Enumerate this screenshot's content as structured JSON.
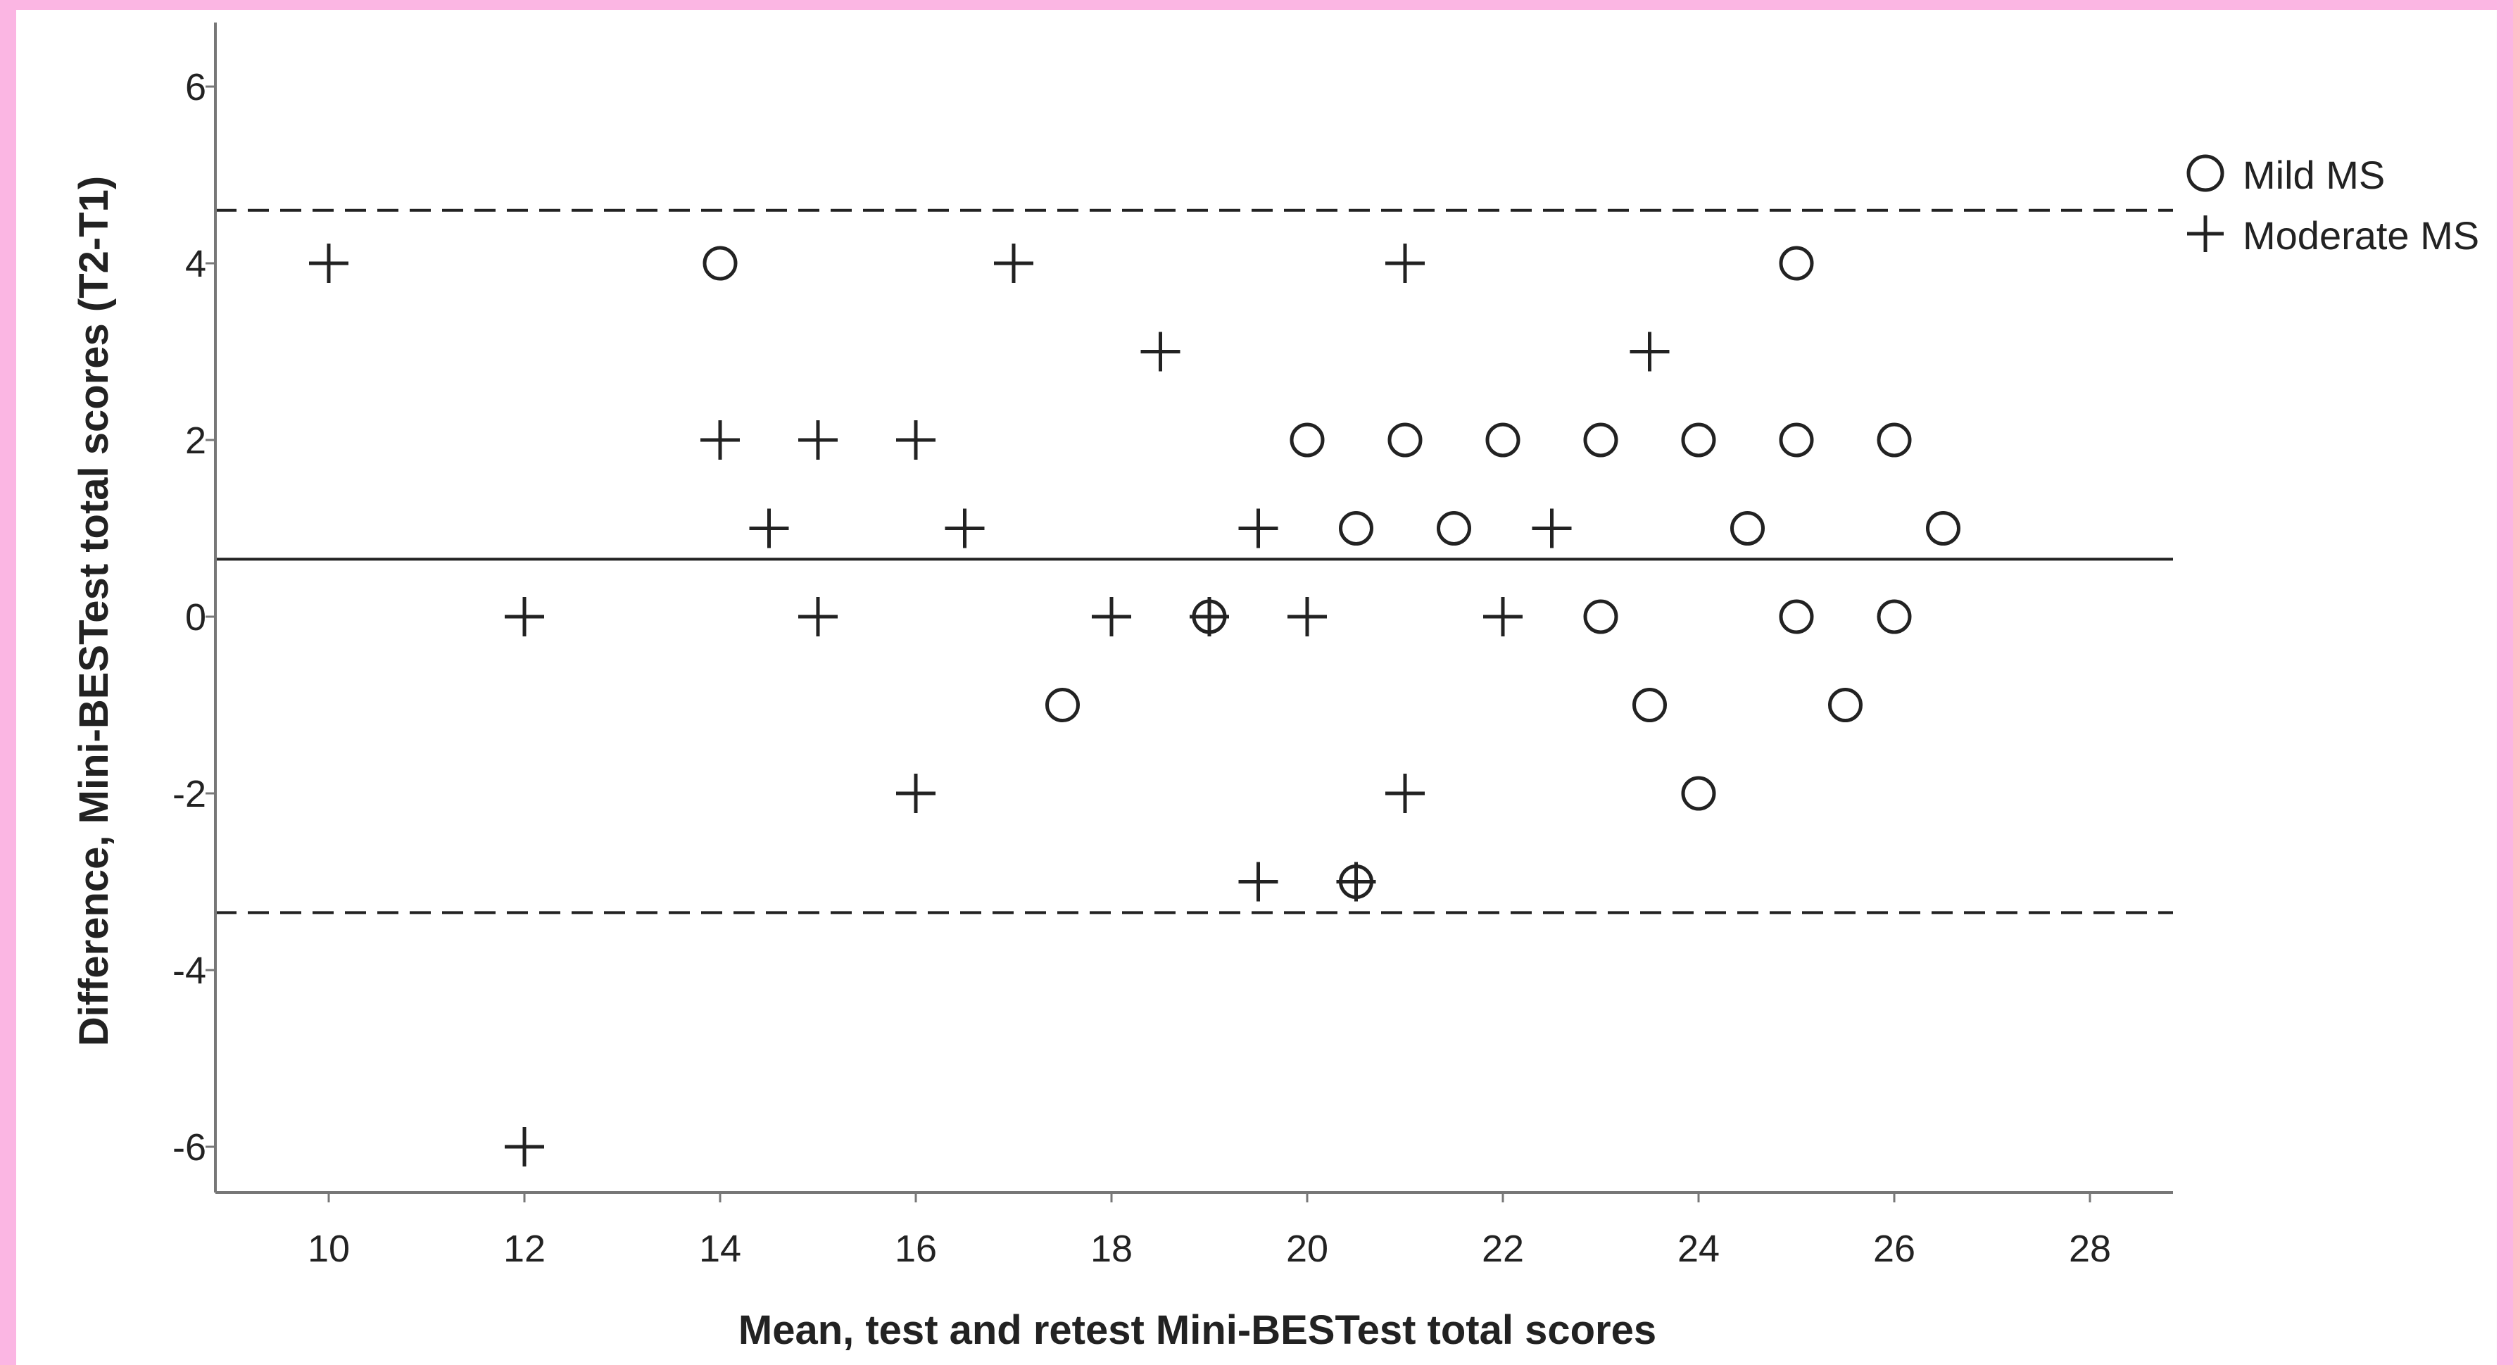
{
  "chart_data": {
    "type": "scatter",
    "title": "",
    "xlabel": "Mean, test and retest Mini-BESTest total scores",
    "ylabel": "Difference, Mini-BESTest total scores (T2-T1)",
    "xlim": [
      9,
      29
    ],
    "ylim": [
      -6.7,
      6.7
    ],
    "x_ticks": [
      "10",
      "12",
      "14",
      "16",
      "18",
      "20",
      "22",
      "24",
      "26",
      "28"
    ],
    "y_ticks": [
      "6",
      "4",
      "2",
      "0",
      "-2",
      "-4",
      "-6"
    ],
    "x_tick_values": [
      10,
      12,
      14,
      16,
      18,
      20,
      22,
      24,
      26,
      28
    ],
    "y_tick_values": [
      6,
      4,
      2,
      0,
      -2,
      -4,
      -6
    ],
    "grid": false,
    "legend_position": "top-right",
    "reference_lines": [
      {
        "kind": "mean difference",
        "style": "solid",
        "y": 0.65
      },
      {
        "kind": "upper limit of agreement",
        "style": "dashed",
        "y": 4.6
      },
      {
        "kind": "lower limit of agreement",
        "style": "dashed",
        "y": -3.35
      }
    ],
    "series": [
      {
        "name": "Mild MS",
        "marker": "circle",
        "points": [
          [
            14,
            4
          ],
          [
            25,
            4
          ],
          [
            20,
            2
          ],
          [
            21,
            2
          ],
          [
            22,
            2
          ],
          [
            23,
            2
          ],
          [
            24,
            2
          ],
          [
            25,
            2
          ],
          [
            26,
            2
          ],
          [
            20.5,
            1
          ],
          [
            21.5,
            1
          ],
          [
            24.5,
            1
          ],
          [
            26.5,
            1
          ],
          [
            19,
            0
          ],
          [
            23,
            0
          ],
          [
            25,
            0
          ],
          [
            26,
            0
          ],
          [
            17.5,
            -1
          ],
          [
            23.5,
            -1
          ],
          [
            25.5,
            -1
          ],
          [
            24,
            -2
          ],
          [
            20.5,
            -3
          ]
        ]
      },
      {
        "name": "Moderate MS",
        "marker": "plus",
        "points": [
          [
            10,
            4
          ],
          [
            17,
            4
          ],
          [
            21,
            4
          ],
          [
            18.5,
            3
          ],
          [
            23.5,
            3
          ],
          [
            14,
            2
          ],
          [
            15,
            2
          ],
          [
            16,
            2
          ],
          [
            14.5,
            1
          ],
          [
            16.5,
            1
          ],
          [
            19.5,
            1
          ],
          [
            22.5,
            1
          ],
          [
            12,
            0
          ],
          [
            15,
            0
          ],
          [
            18,
            0
          ],
          [
            19,
            0
          ],
          [
            20,
            0
          ],
          [
            22,
            0
          ],
          [
            16,
            -2
          ],
          [
            21,
            -2
          ],
          [
            19.5,
            -3
          ],
          [
            20.5,
            -3
          ],
          [
            12,
            -6
          ]
        ]
      }
    ]
  },
  "colors": {
    "marks": "#222222",
    "background": "#ffffff",
    "border": "#fbb6e3"
  }
}
